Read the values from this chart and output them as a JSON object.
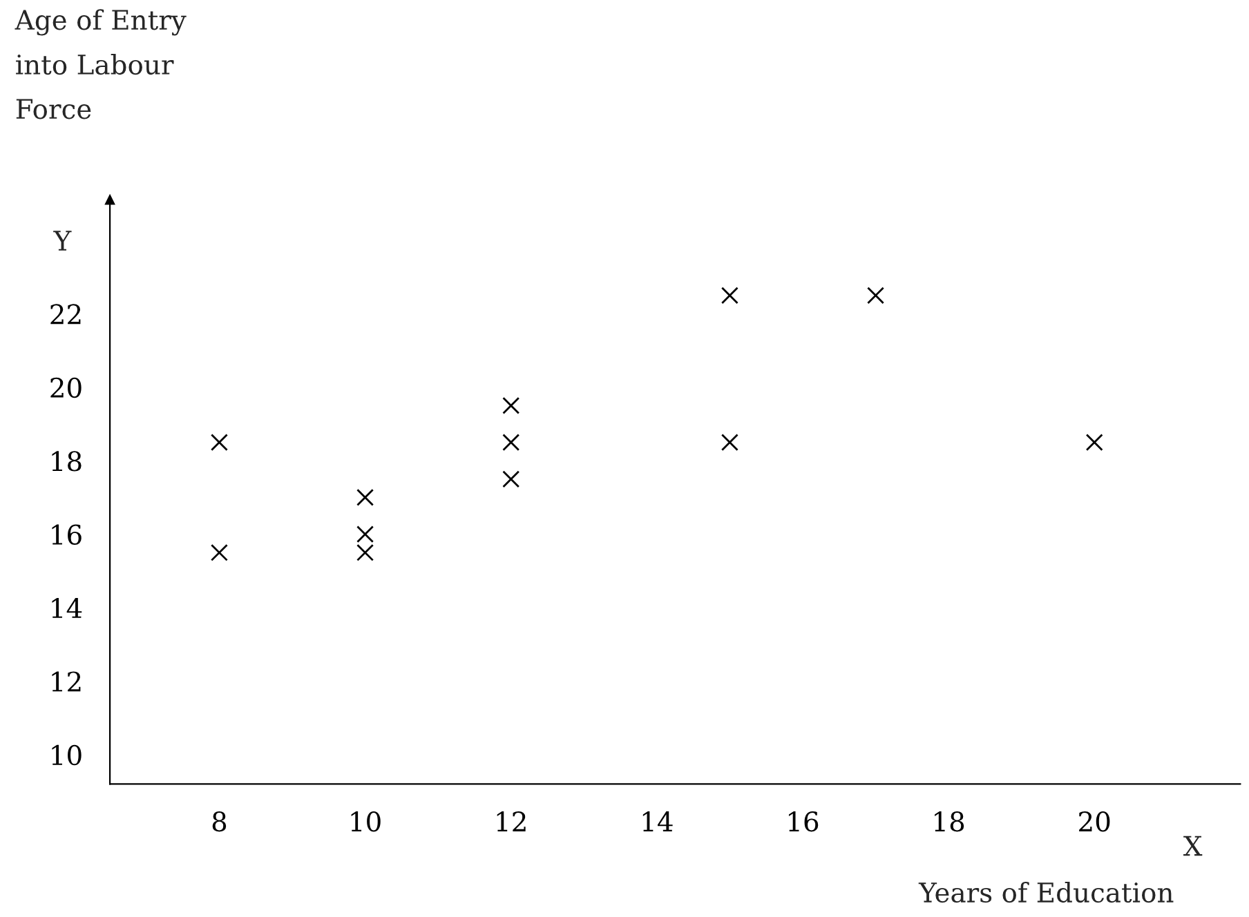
{
  "chart_data": {
    "type": "scatter",
    "xlabel": "Years of Education",
    "ylabel": "Age of Entry\ninto Labour\nForce",
    "annotations": [
      "Y",
      "X"
    ],
    "series": [
      {
        "color": "#000000",
        "x": [
          8,
          8,
          10,
          10,
          10,
          12,
          12,
          12,
          15,
          15,
          17,
          20
        ],
        "values": [
          18.5,
          15.5,
          17,
          16,
          15.5,
          19.5,
          18.5,
          17.5,
          22.5,
          18.5,
          22.5,
          18.5
        ]
      }
    ],
    "marker": "cross",
    "xlim": [
      6.5,
      22
    ],
    "ylim": [
      9.2,
      25.1
    ],
    "xticks": [
      8,
      10,
      12,
      14,
      16,
      18,
      20
    ],
    "yticks": [
      10,
      12,
      14,
      16,
      18,
      20,
      22
    ],
    "grid": false,
    "legend": false
  }
}
